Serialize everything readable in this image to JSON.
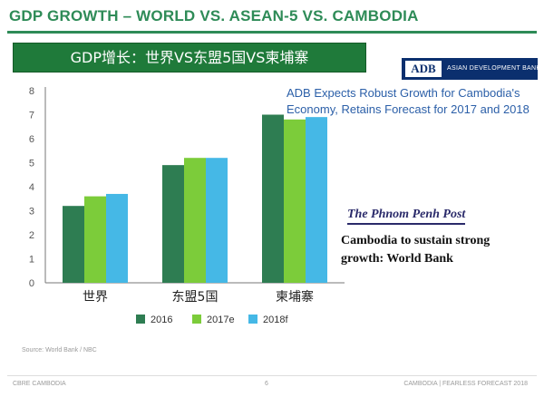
{
  "slide": {
    "title": "GDP GROWTH – WORLD VS. ASEAN-5 VS. CAMBODIA",
    "cn_banner": "GDP增长：世界VS东盟5国VS柬埔寨",
    "source": "Source: World Bank / NBC",
    "footer_left": "CBRE CAMBODIA",
    "footer_center": "6",
    "footer_right": "CAMBODIA | FEARLESS FORECAST 2018"
  },
  "adb": {
    "logo_mark": "ADB",
    "logo_name": "ASIAN DEVELOPMENT BANK",
    "headline": "ADB Expects Robust Growth for Cambodia's Economy, Retains Forecast for 2017 and 2018"
  },
  "ppp": {
    "logo": "The Phnom Penh Post",
    "headline": "Cambodia to sustain strong growth: World Bank"
  },
  "chart_data": {
    "type": "bar",
    "categories": [
      "世界",
      "东盟5国",
      "柬埔寨"
    ],
    "series": [
      {
        "name": "2016",
        "color": "#2e7d52",
        "values": [
          3.2,
          4.9,
          7.0
        ]
      },
      {
        "name": "2017e",
        "color": "#7ccc3a",
        "values": [
          3.6,
          5.2,
          6.8
        ]
      },
      {
        "name": "2018f",
        "color": "#45b8e6",
        "values": [
          3.7,
          5.2,
          6.9
        ]
      }
    ],
    "y_ticks": [
      "0",
      "1",
      "2",
      "3",
      "4",
      "5",
      "6",
      "7",
      "8"
    ],
    "ylim": [
      0,
      8
    ],
    "legend_position": "bottom",
    "grid": false
  }
}
